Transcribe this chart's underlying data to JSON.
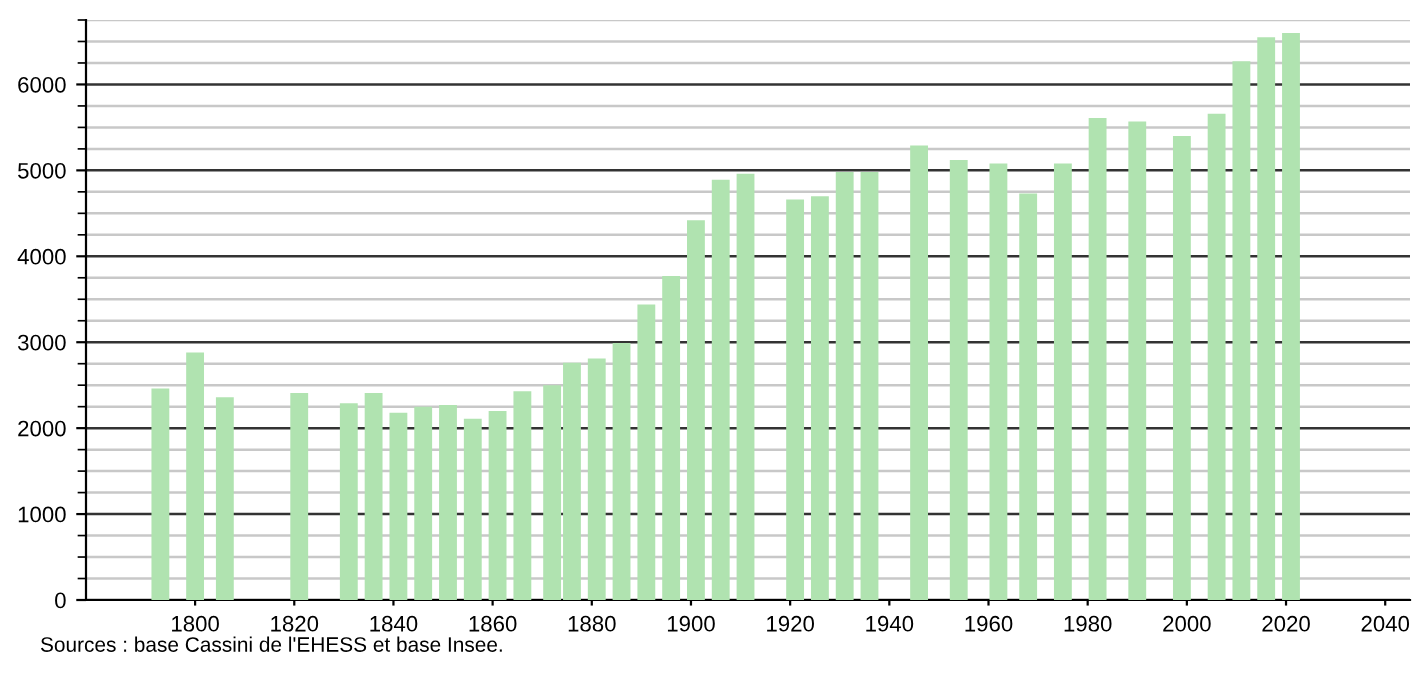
{
  "chart_data": {
    "type": "bar",
    "x": [
      1793,
      1800,
      1806,
      1821,
      1831,
      1836,
      1841,
      1846,
      1851,
      1856,
      1861,
      1866,
      1872,
      1876,
      1881,
      1886,
      1891,
      1896,
      1901,
      1906,
      1911,
      1921,
      1926,
      1931,
      1936,
      1946,
      1954,
      1962,
      1968,
      1975,
      1982,
      1990,
      1999,
      2006,
      2011,
      2016,
      2021
    ],
    "values": [
      2460,
      2880,
      2360,
      2410,
      2290,
      2410,
      2180,
      2250,
      2270,
      2110,
      2200,
      2430,
      2500,
      2760,
      2810,
      2990,
      3440,
      3770,
      4420,
      4890,
      4960,
      4660,
      4700,
      4980,
      4980,
      5290,
      5120,
      5080,
      4730,
      5080,
      5610,
      5570,
      5400,
      5660,
      6270,
      6550,
      6600
    ],
    "color": "#b0e3b0",
    "xlim": [
      1778,
      2045
    ],
    "xticks": [
      1800,
      1820,
      1840,
      1860,
      1880,
      1900,
      1920,
      1940,
      1960,
      1980,
      2000,
      2020,
      2040
    ],
    "ylim": [
      0,
      6750
    ],
    "yticks": [
      0,
      1000,
      2000,
      3000,
      4000,
      5000,
      6000
    ],
    "grid": "y",
    "annotations": [
      "Sources : base Cassini de l'EHESS et base Insee."
    ]
  }
}
